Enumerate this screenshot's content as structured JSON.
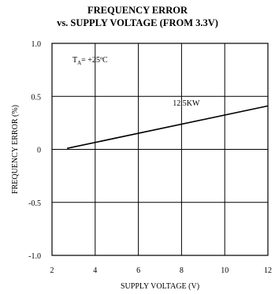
{
  "chart_data": {
    "type": "line",
    "title": "FREQUENCY ERROR",
    "subtitle": "vs. SUPPLY VOLTAGE (FROM 3.3V)",
    "xlabel": "SUPPLY VOLTAGE (V)",
    "ylabel": "FREQUENCY ERROR (%)",
    "xlim": [
      2,
      12
    ],
    "ylim": [
      -1.0,
      1.0
    ],
    "x_ticks": [
      "2",
      "4",
      "6",
      "8",
      "10",
      "12"
    ],
    "y_ticks": [
      "1.0",
      "0.5",
      "0",
      "-0.5",
      "-1.0"
    ],
    "grid": true,
    "annotation": {
      "prefix": "T",
      "sub": "A",
      "text": "= +25ºC"
    },
    "series": [
      {
        "name": "12.5KW",
        "x": [
          2.7,
          12
        ],
        "y": [
          0.01,
          0.41
        ]
      }
    ]
  }
}
